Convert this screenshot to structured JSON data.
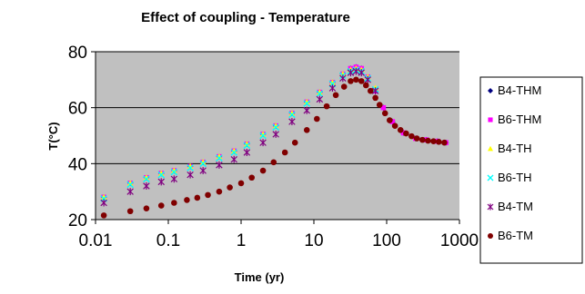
{
  "chart_data": {
    "type": "scatter",
    "title": "Effect of coupling - Temperature",
    "xlabel": "Time (yr)",
    "ylabel": "T(°C)",
    "x_scale": "log",
    "xlim": [
      0.01,
      1000
    ],
    "ylim": [
      20,
      80
    ],
    "x_ticks": [
      0.01,
      0.1,
      1,
      10,
      100,
      1000
    ],
    "x_tick_labels": [
      "0.01",
      "0.1",
      "1",
      "10",
      "100",
      "1000"
    ],
    "y_ticks": [
      20,
      40,
      60,
      80
    ],
    "y_tick_labels": [
      "20",
      "40",
      "60",
      "80"
    ],
    "grid": "horizontal",
    "plot_background": "#c0c0c0",
    "legend_position": "right",
    "series": [
      {
        "name": "B4-THM",
        "color": "#000080",
        "marker": "diamond",
        "x": [
          0.013,
          0.03,
          0.05,
          0.08,
          0.12,
          0.2,
          0.3,
          0.5,
          0.8,
          1.2,
          2,
          3,
          5,
          8,
          12,
          18,
          25,
          32,
          38,
          45,
          55,
          70,
          90,
          120,
          170,
          250,
          350,
          500,
          650
        ],
        "y": [
          28,
          33,
          35,
          36.5,
          37.5,
          39,
          40.5,
          42.5,
          44.5,
          47,
          50.5,
          53.5,
          58,
          62,
          65.5,
          69,
          72,
          74,
          74.5,
          74,
          71,
          66,
          60,
          55,
          51,
          49,
          48.5,
          48,
          47.5
        ]
      },
      {
        "name": "B6-THM",
        "color": "#ff00ff",
        "marker": "square",
        "x": [
          0.013,
          0.03,
          0.05,
          0.08,
          0.12,
          0.2,
          0.3,
          0.5,
          0.8,
          1.2,
          2,
          3,
          5,
          8,
          12,
          18,
          25,
          32,
          38,
          45,
          55,
          70,
          90,
          120,
          170,
          250,
          350,
          500,
          650
        ],
        "y": [
          28,
          33,
          35,
          36.5,
          37.5,
          39,
          40.5,
          42.5,
          44.5,
          47,
          50.5,
          53.5,
          58,
          62,
          65.5,
          69,
          72,
          74,
          74.5,
          74,
          71,
          66,
          60,
          55,
          51,
          49,
          48.5,
          48,
          47.5
        ]
      },
      {
        "name": "B4-TH",
        "color": "#ffff00",
        "marker": "triangle",
        "x": [
          0.013,
          0.03,
          0.05,
          0.08,
          0.12,
          0.2,
          0.3,
          0.5,
          0.8,
          1.2,
          2,
          3,
          5,
          8,
          12,
          18,
          25,
          32,
          38,
          45,
          55,
          70
        ],
        "y": [
          28,
          33,
          35,
          36.5,
          37.5,
          39,
          40.5,
          42.5,
          44.5,
          47,
          50.5,
          53.5,
          58,
          62,
          65.5,
          69,
          72,
          73.5,
          74,
          73.5,
          71,
          67
        ]
      },
      {
        "name": "B6-TH",
        "color": "#00ffff",
        "marker": "x",
        "x": [
          0.013,
          0.03,
          0.05,
          0.08,
          0.12,
          0.2,
          0.3,
          0.5,
          0.8,
          1.2,
          2,
          3,
          5,
          8,
          12,
          18,
          25,
          32,
          38,
          45,
          55,
          70
        ],
        "y": [
          27.5,
          32.5,
          34.5,
          36,
          37,
          38.5,
          40,
          42,
          44,
          46.5,
          50,
          53,
          57.5,
          61.5,
          65,
          68.5,
          71.5,
          73,
          73.5,
          73,
          70.5,
          66.5
        ]
      },
      {
        "name": "B4-TM",
        "color": "#800080",
        "marker": "star",
        "x": [
          0.013,
          0.03,
          0.05,
          0.08,
          0.12,
          0.2,
          0.3,
          0.5,
          0.8,
          1.2,
          2,
          3,
          5,
          8,
          12,
          18,
          25,
          32,
          38,
          45,
          55,
          70
        ],
        "y": [
          26,
          30,
          32,
          33.5,
          34.5,
          36,
          37.5,
          39.5,
          41.5,
          44,
          47.5,
          50.5,
          55,
          59,
          63,
          67,
          70.5,
          72.5,
          73,
          72.5,
          70,
          66
        ]
      },
      {
        "name": "B6-TM",
        "color": "#800000",
        "marker": "circle",
        "x": [
          0.013,
          0.03,
          0.05,
          0.08,
          0.12,
          0.18,
          0.25,
          0.35,
          0.5,
          0.7,
          1,
          1.4,
          2,
          2.8,
          4,
          5.5,
          8,
          11,
          15,
          20,
          26,
          32,
          38,
          45,
          52,
          60,
          70,
          80,
          95,
          110,
          130,
          155,
          185,
          220,
          260,
          310,
          370,
          440,
          520,
          620
        ],
        "y": [
          21.5,
          23,
          24,
          25,
          26,
          27,
          27.8,
          28.8,
          30,
          31.5,
          33,
          35,
          37.5,
          40.5,
          44,
          47.5,
          52,
          56,
          60.5,
          64.5,
          67.5,
          69.5,
          70,
          69.5,
          68,
          66,
          63.5,
          61,
          58,
          55.5,
          53.5,
          52,
          50.8,
          49.8,
          49,
          48.5,
          48.2,
          48,
          47.8,
          47.5
        ]
      }
    ]
  }
}
